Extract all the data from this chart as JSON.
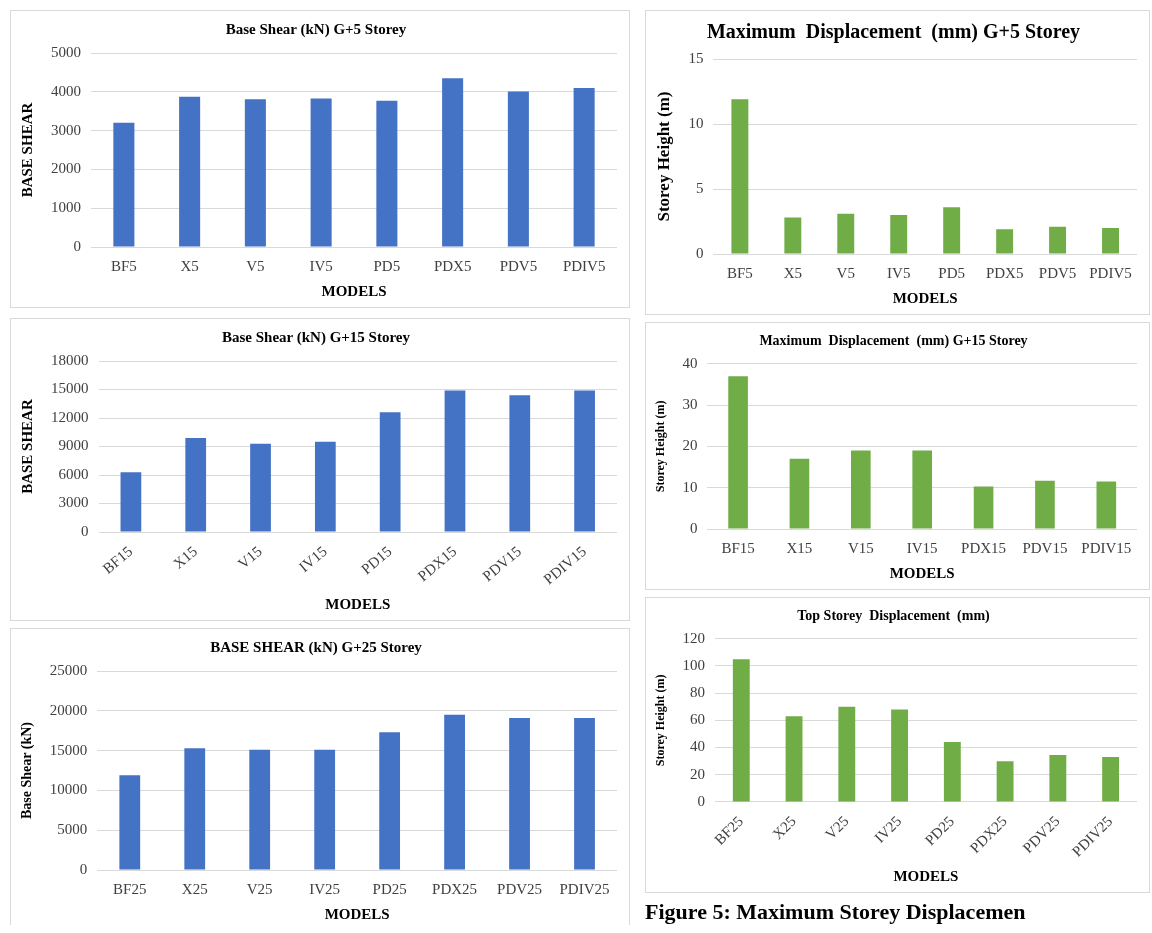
{
  "chart_data": [
    {
      "type": "bar",
      "title": "Base Shear (kN) G+5 Storey",
      "xlabel": "MODELS",
      "ylabel": "BASE SHEAR",
      "categories": [
        "BF5",
        "X5",
        "V5",
        "IV5",
        "PD5",
        "PDX5",
        "PDV5",
        "PDIV5"
      ],
      "values": [
        3200,
        3870,
        3810,
        3830,
        3770,
        4350,
        4010,
        4100
      ],
      "color": "#4472c4",
      "ylim": [
        0,
        5000
      ],
      "yticks": [
        0,
        1000,
        2000,
        3000,
        4000,
        5000
      ],
      "grid": "y"
    },
    {
      "type": "bar",
      "title": "Base Shear (kN) G+15 Storey",
      "xlabel": "MODELS",
      "ylabel": "BASE SHEAR",
      "categories": [
        "BF15",
        "X15",
        "V15",
        "IV15",
        "PD15",
        "PDX15",
        "PDV15",
        "PDIV15"
      ],
      "values": [
        6300,
        9900,
        9300,
        9500,
        12600,
        14900,
        14400,
        14900
      ],
      "color": "#4472c4",
      "ylim": [
        0,
        18000
      ],
      "yticks": [
        0,
        3000,
        6000,
        9000,
        12000,
        15000,
        18000
      ],
      "grid": "y"
    },
    {
      "type": "bar",
      "title": "BASE SHEAR (kN) G+25 Storey",
      "xlabel": "MODELS",
      "ylabel": "Base Shear (kN)",
      "categories": [
        "BF25",
        "X25",
        "V25",
        "IV25",
        "PD25",
        "PDX25",
        "PDV25",
        "PDIV25"
      ],
      "values": [
        11900,
        15300,
        15100,
        15100,
        17300,
        19500,
        19100,
        19100
      ],
      "color": "#4472c4",
      "ylim": [
        0,
        25000
      ],
      "yticks": [
        0,
        5000,
        10000,
        15000,
        20000,
        25000
      ],
      "grid": "y"
    },
    {
      "type": "bar",
      "title": "Maximum  Displacement  (mm) G+5 Storey",
      "xlabel": "MODELS",
      "ylabel": "Storey Height (m)",
      "categories": [
        "BF5",
        "X5",
        "V5",
        "IV5",
        "PD5",
        "PDX5",
        "PDV5",
        "PDIV5"
      ],
      "values": [
        11.9,
        2.8,
        3.1,
        3.0,
        3.6,
        1.9,
        2.1,
        2.0
      ],
      "color": "#70ad47",
      "ylim": [
        0,
        15
      ],
      "yticks": [
        0,
        5,
        10,
        15
      ],
      "grid": "y"
    },
    {
      "type": "bar",
      "title": "Maximum  Displacement  (mm) G+15 Storey",
      "xlabel": "MODELS",
      "ylabel": "Storey Height (m)",
      "categories": [
        "BF15",
        "X15",
        "V15",
        "IV15",
        "PDX15",
        "PDV15",
        "PDIV15"
      ],
      "values": [
        37,
        17,
        19,
        19,
        10.3,
        11.7,
        11.5
      ],
      "color": "#70ad47",
      "ylim": [
        0,
        40
      ],
      "yticks": [
        0,
        10,
        20,
        30,
        40
      ],
      "grid": "y"
    },
    {
      "type": "bar",
      "title": "Top Storey  Displacement  (mm)",
      "xlabel": "MODELS",
      "ylabel": "Storey Height (m)",
      "categories": [
        "BF25",
        "X25",
        "V25",
        "IV25",
        "PD25",
        "PDX25",
        "PDV25",
        "PDIV25"
      ],
      "values": [
        105,
        63,
        70,
        68,
        44,
        30,
        34.5,
        33
      ],
      "color": "#70ad47",
      "ylim": [
        0,
        120
      ],
      "yticks": [
        0,
        20,
        40,
        60,
        80,
        100,
        120
      ],
      "grid": "y",
      "annotations": [
        "Figure 5: Maximum Storey Displacemen"
      ]
    }
  ]
}
